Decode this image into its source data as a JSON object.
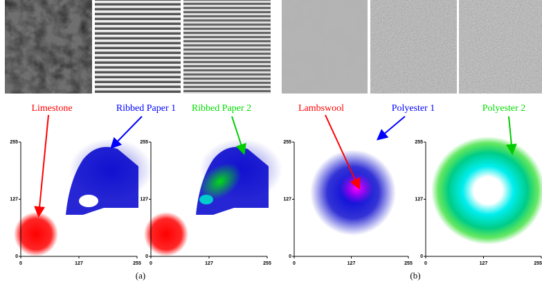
{
  "figure": {
    "panels": [
      {
        "caption": "(a)",
        "labels": [
          "Limestone",
          "Ribbed Paper 1",
          "Ribbed Paper 2"
        ]
      },
      {
        "caption": "(b)",
        "labels": [
          "Lambswool",
          "Polyester 1",
          "Polyester 2"
        ]
      }
    ],
    "axis_ticks": [
      "0",
      "127",
      "255"
    ]
  }
}
